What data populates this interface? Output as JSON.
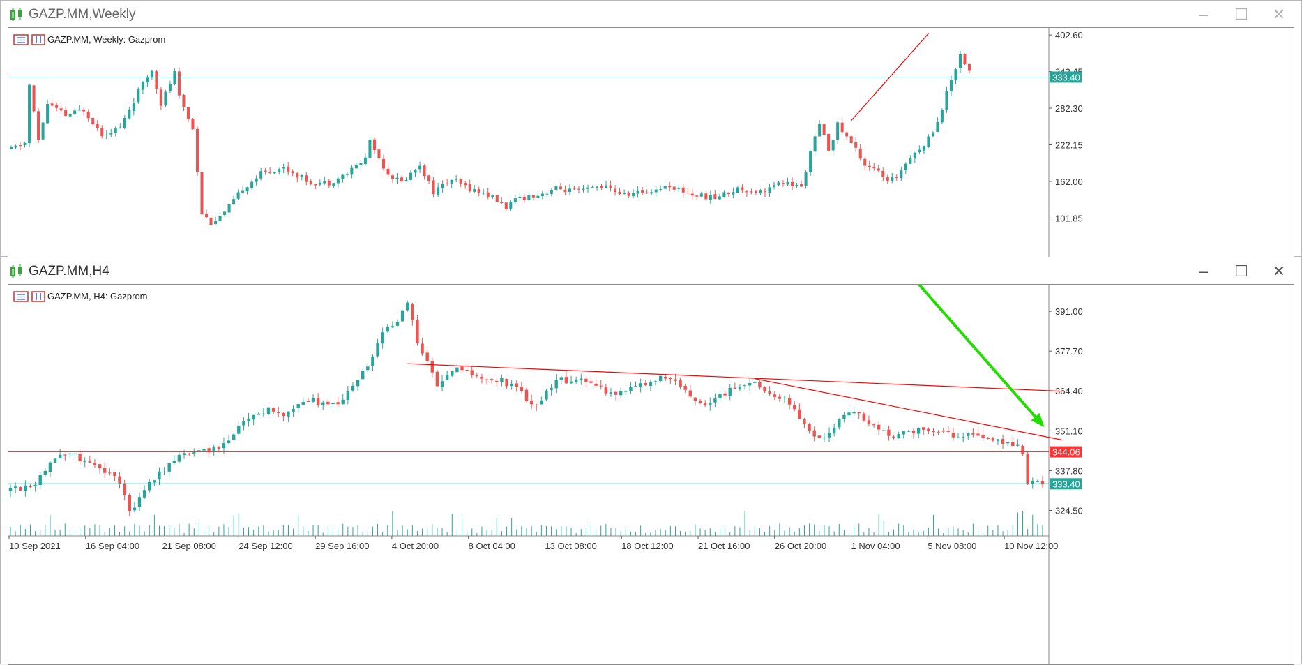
{
  "windows": [
    {
      "title": "GAZP.MM,Weekly",
      "chart_label": "GAZP.MM, Weekly:  Gazprom",
      "active": false
    },
    {
      "title": "GAZP.MM,H4",
      "chart_label": "GAZP.MM, H4:  Gazprom",
      "active": true
    }
  ],
  "window_controls": [
    "minimize",
    "maximize",
    "close"
  ],
  "colors": {
    "bull": "#26a69a",
    "bear": "#ef5350",
    "trendline": "#ff0000",
    "arrow": "#22dd00",
    "hline_teal": "#26a69a",
    "hline_red": "#ff3333"
  },
  "chart_data": [
    {
      "type": "candlestick",
      "title": "GAZP.MM, Weekly:  Gazprom",
      "y_ticks": [
        402.6,
        342.45,
        282.3,
        222.15,
        162.0,
        101.85
      ],
      "ylim": [
        45,
        405
      ],
      "price_labels": [
        {
          "value": 333.4,
          "color": "#26a69a"
        }
      ],
      "horizontal_lines": [
        {
          "value": 333.4,
          "color": "#26a69a"
        }
      ],
      "trendlines": [
        {
          "from": {
            "index": 185,
            "price": 262
          },
          "to": {
            "index": 202,
            "price": 405
          },
          "color": "#ff0000"
        }
      ],
      "anchors": [
        [
          0,
          215
        ],
        [
          3,
          225
        ],
        [
          4,
          320
        ],
        [
          6,
          230
        ],
        [
          8,
          290
        ],
        [
          12,
          270
        ],
        [
          16,
          280
        ],
        [
          20,
          240
        ],
        [
          24,
          250
        ],
        [
          28,
          310
        ],
        [
          31,
          345
        ],
        [
          33,
          290
        ],
        [
          36,
          340
        ],
        [
          37,
          300
        ],
        [
          40,
          250
        ],
        [
          42,
          110
        ],
        [
          44,
          95
        ],
        [
          47,
          110
        ],
        [
          51,
          150
        ],
        [
          55,
          175
        ],
        [
          60,
          185
        ],
        [
          66,
          160
        ],
        [
          70,
          160
        ],
        [
          74,
          175
        ],
        [
          78,
          200
        ],
        [
          79,
          230
        ],
        [
          81,
          200
        ],
        [
          83,
          175
        ],
        [
          86,
          160
        ],
        [
          90,
          190
        ],
        [
          93,
          145
        ],
        [
          97,
          165
        ],
        [
          101,
          150
        ],
        [
          105,
          140
        ],
        [
          109,
          120
        ],
        [
          112,
          135
        ],
        [
          116,
          140
        ],
        [
          120,
          150
        ],
        [
          125,
          145
        ],
        [
          130,
          155
        ],
        [
          135,
          140
        ],
        [
          140,
          145
        ],
        [
          145,
          155
        ],
        [
          150,
          140
        ],
        [
          155,
          135
        ],
        [
          160,
          150
        ],
        [
          165,
          145
        ],
        [
          170,
          160
        ],
        [
          174,
          152
        ],
        [
          176,
          210
        ],
        [
          178,
          255
        ],
        [
          180,
          215
        ],
        [
          182,
          255
        ],
        [
          186,
          215
        ],
        [
          188,
          190
        ],
        [
          190,
          185
        ],
        [
          193,
          160
        ],
        [
          195,
          170
        ],
        [
          198,
          205
        ],
        [
          201,
          220
        ],
        [
          204,
          260
        ],
        [
          207,
          330
        ],
        [
          209,
          370
        ],
        [
          211,
          345
        ]
      ],
      "candle_count": 212
    },
    {
      "type": "candlestick",
      "title": "GAZP.MM, H4:  Gazprom",
      "x_tick_labels": [
        "10 Sep 2021",
        "16 Sep 04:00",
        "21 Sep 08:00",
        "24 Sep 12:00",
        "29 Sep 16:00",
        "4 Oct 20:00",
        "8 Oct 04:00",
        "13 Oct 08:00",
        "18 Oct 12:00",
        "21 Oct 16:00",
        "26 Oct 20:00",
        "1 Nov 04:00",
        "5 Nov 08:00",
        "10 Nov 12:00"
      ],
      "y_ticks": [
        391.0,
        377.7,
        364.4,
        351.1,
        337.8,
        324.5
      ],
      "ylim": [
        316,
        398
      ],
      "price_labels": [
        {
          "value": 344.06,
          "color": "#ff3333"
        },
        {
          "value": 333.4,
          "color": "#26a69a"
        }
      ],
      "horizontal_lines": [
        {
          "value": 344.06,
          "color": "#ff3333"
        },
        {
          "value": 333.4,
          "color": "#26a69a"
        }
      ],
      "trendlines": [
        {
          "from": {
            "index": 80,
            "price": 373.5
          },
          "to": {
            "index": 212,
            "price": 364.3
          },
          "color": "#ff0000"
        },
        {
          "from": {
            "index": 150,
            "price": 368.5
          },
          "to": {
            "index": 212,
            "price": 348
          },
          "color": "#ff0000"
        }
      ],
      "arrow": {
        "from": {
          "index": 182,
          "price": 402
        },
        "to": {
          "index": 208,
          "price": 353
        },
        "color": "#22dd00"
      },
      "anchors": [
        [
          0,
          331
        ],
        [
          5,
          334
        ],
        [
          8,
          341
        ],
        [
          12,
          344
        ],
        [
          15,
          341
        ],
        [
          18,
          338
        ],
        [
          20,
          337
        ],
        [
          22,
          334
        ],
        [
          24,
          325
        ],
        [
          26,
          328
        ],
        [
          28,
          334
        ],
        [
          31,
          338
        ],
        [
          33,
          341
        ],
        [
          36,
          344
        ],
        [
          40,
          345
        ],
        [
          42,
          345
        ],
        [
          45,
          350
        ],
        [
          48,
          356
        ],
        [
          52,
          358
        ],
        [
          55,
          357
        ],
        [
          58,
          360
        ],
        [
          61,
          361
        ],
        [
          64,
          359
        ],
        [
          67,
          362
        ],
        [
          70,
          368
        ],
        [
          73,
          376
        ],
        [
          75,
          384
        ],
        [
          78,
          388
        ],
        [
          80,
          393
        ],
        [
          81,
          389
        ],
        [
          82,
          380
        ],
        [
          84,
          374
        ],
        [
          86,
          366
        ],
        [
          88,
          369
        ],
        [
          90,
          372
        ],
        [
          93,
          370
        ],
        [
          96,
          368
        ],
        [
          99,
          368
        ],
        [
          102,
          365
        ],
        [
          104,
          362
        ],
        [
          106,
          359
        ],
        [
          108,
          364
        ],
        [
          110,
          368
        ],
        [
          113,
          368
        ],
        [
          116,
          368
        ],
        [
          118,
          367
        ],
        [
          120,
          363
        ],
        [
          123,
          364
        ],
        [
          126,
          366
        ],
        [
          129,
          368
        ],
        [
          132,
          369
        ],
        [
          135,
          366
        ],
        [
          137,
          362
        ],
        [
          139,
          361
        ],
        [
          141,
          360
        ],
        [
          143,
          363
        ],
        [
          146,
          366
        ],
        [
          149,
          368
        ],
        [
          151,
          366
        ],
        [
          154,
          363
        ],
        [
          156,
          362
        ],
        [
          158,
          358
        ],
        [
          160,
          353
        ],
        [
          162,
          350
        ],
        [
          164,
          348
        ],
        [
          166,
          352
        ],
        [
          168,
          356
        ],
        [
          170,
          358
        ],
        [
          172,
          355
        ],
        [
          175,
          352
        ],
        [
          177,
          349
        ],
        [
          180,
          350
        ],
        [
          183,
          351
        ],
        [
          186,
          351
        ],
        [
          189,
          350
        ],
        [
          192,
          350
        ],
        [
          195,
          349
        ],
        [
          198,
          348
        ],
        [
          200,
          347
        ],
        [
          202,
          346
        ],
        [
          203,
          346
        ],
        [
          204,
          343
        ],
        [
          205,
          334
        ],
        [
          206,
          335
        ],
        [
          207,
          334
        ],
        [
          208,
          333.4
        ]
      ],
      "candle_count": 209
    }
  ]
}
